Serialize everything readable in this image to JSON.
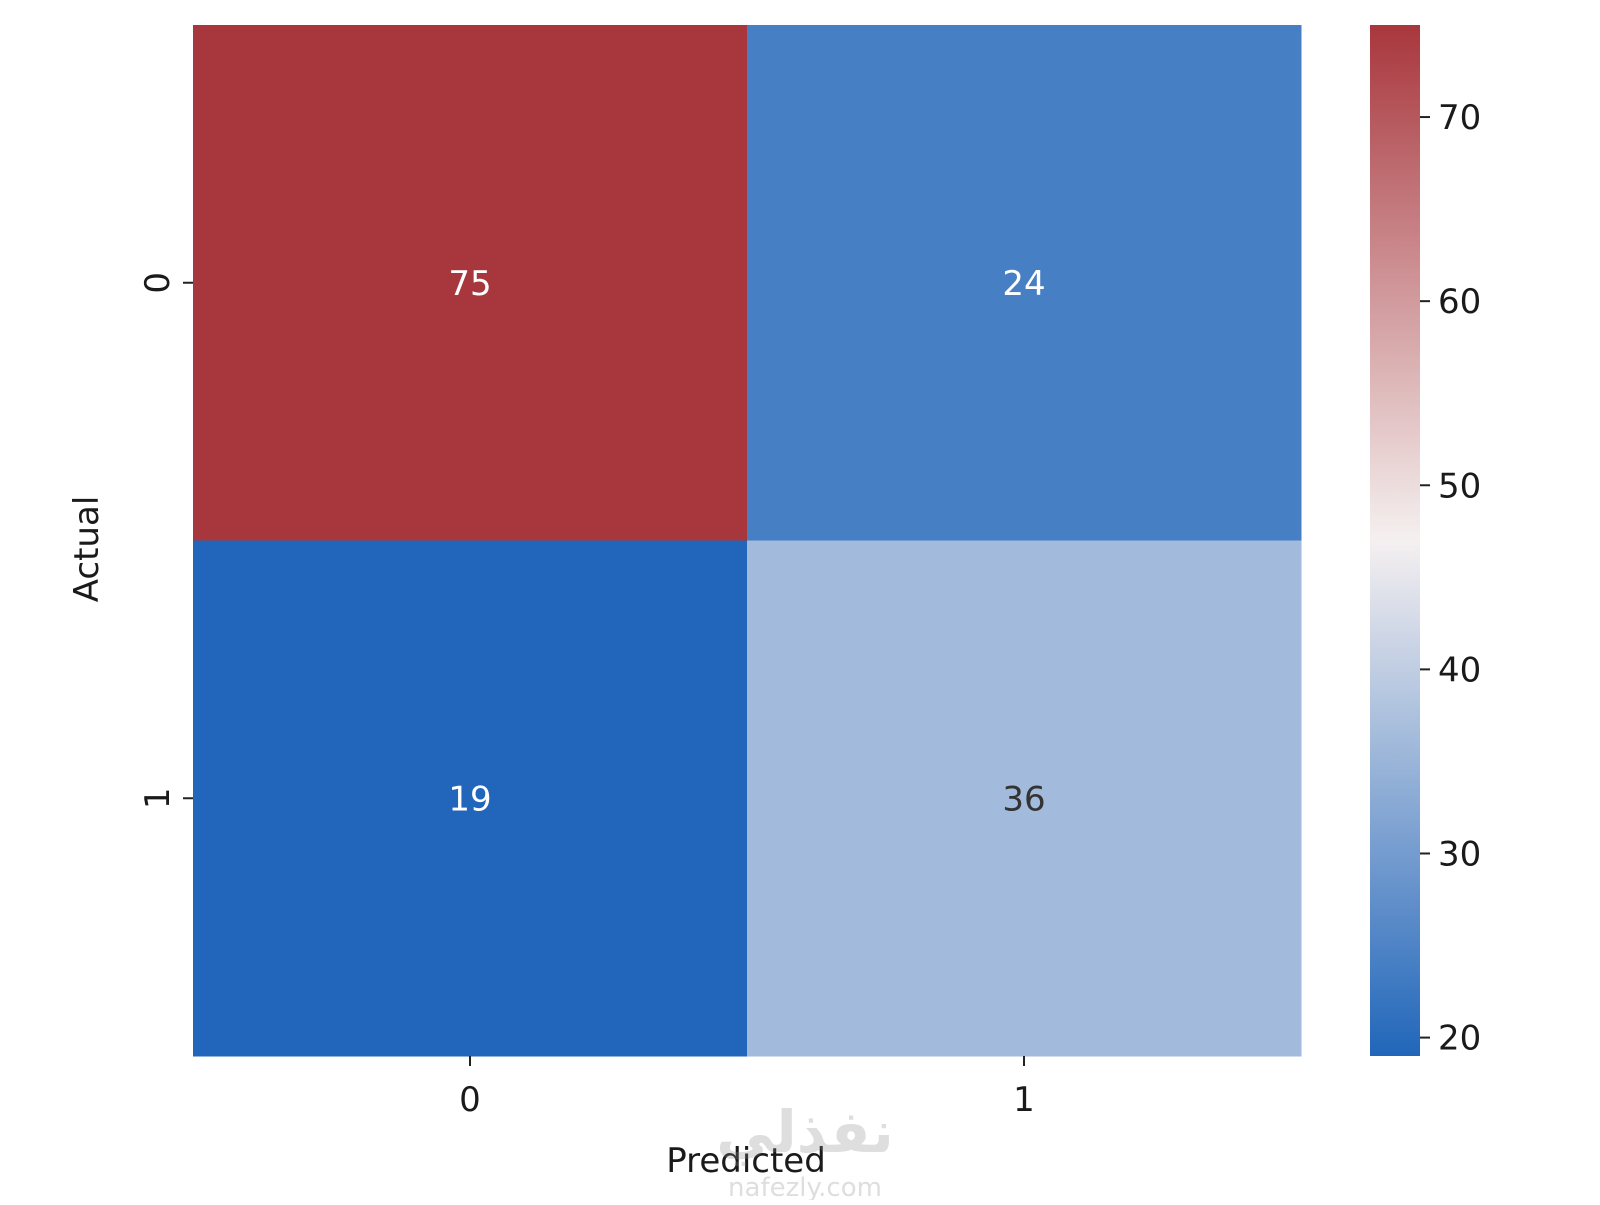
{
  "chart_data": {
    "type": "heatmap",
    "title": "",
    "xlabel": "Predicted",
    "ylabel": "Actual",
    "x_categories": [
      "0",
      "1"
    ],
    "y_categories": [
      "0",
      "1"
    ],
    "values": [
      [
        75,
        24
      ],
      [
        19,
        36
      ]
    ],
    "colorbar": {
      "vmin": 19,
      "vmax": 75,
      "center": 47,
      "ticks": [
        20,
        30,
        40,
        50,
        60,
        70
      ],
      "low_color": "#2166ba",
      "mid_color": "#f5f0f0",
      "high_color": "#a8373d",
      "placement": "right"
    },
    "grid": false
  },
  "watermark": {
    "text": "نفذلي",
    "subtext": "nafezly.com"
  }
}
